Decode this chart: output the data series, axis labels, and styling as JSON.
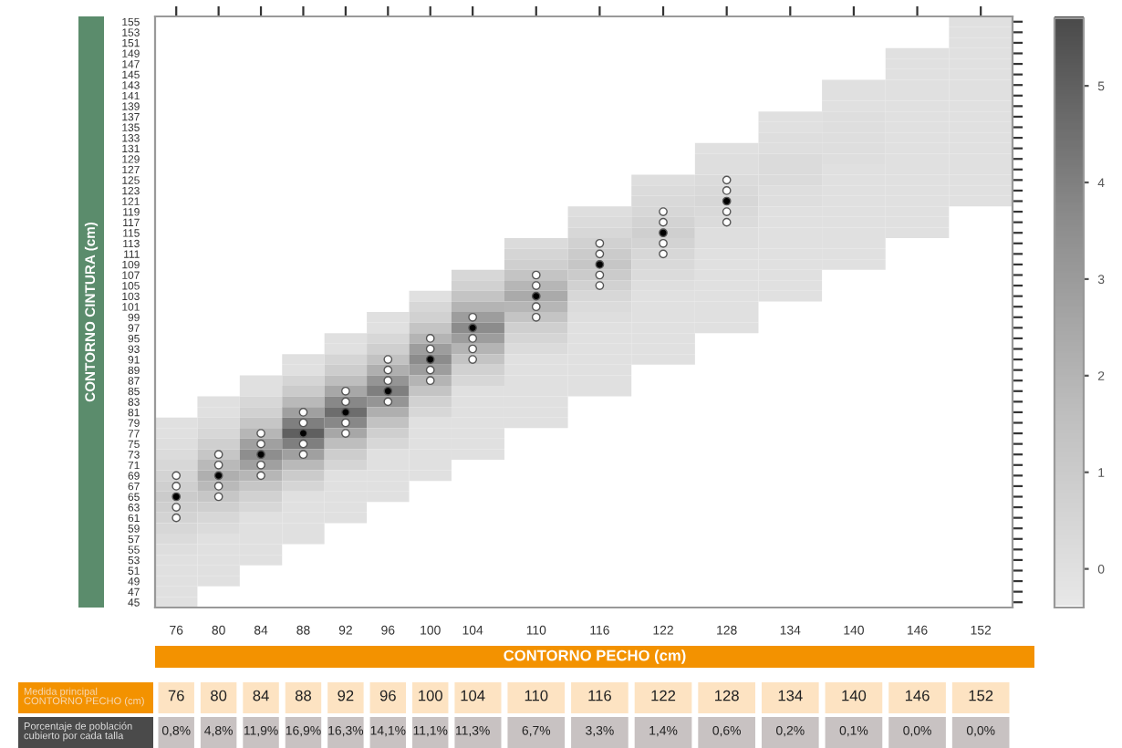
{
  "chart_data": {
    "type": "heatmap",
    "xlabel": "CONTORNO PECHO (cm)",
    "ylabel": "CONTORNO CINTURA (cm)",
    "x": [
      76,
      80,
      84,
      88,
      92,
      96,
      100,
      104,
      110,
      116,
      122,
      128,
      134,
      140,
      146,
      152
    ],
    "xlim": [
      74,
      155
    ],
    "xticks": [
      76,
      80,
      84,
      88,
      92,
      96,
      100,
      104,
      110,
      116,
      122,
      128,
      134,
      140,
      146,
      152
    ],
    "ylim": [
      44,
      156
    ],
    "yticks": [
      155,
      153,
      151,
      149,
      147,
      145,
      143,
      141,
      139,
      137,
      135,
      133,
      131,
      129,
      127,
      125,
      123,
      121,
      119,
      117,
      115,
      113,
      111,
      109,
      107,
      105,
      103,
      101,
      99,
      97,
      95,
      93,
      91,
      89,
      87,
      85,
      83,
      81,
      79,
      77,
      75,
      73,
      71,
      69,
      67,
      65,
      63,
      61,
      59,
      57,
      55,
      53,
      51,
      49,
      47,
      45
    ],
    "clim": [
      -0.4,
      5.7
    ],
    "cticks": [
      0,
      1,
      2,
      3,
      4,
      5
    ],
    "cells": [
      [
        null,
        null,
        null,
        null,
        null,
        null,
        null,
        null,
        null,
        null,
        null,
        null,
        null,
        null,
        null,
        0
      ],
      [
        null,
        null,
        null,
        null,
        null,
        null,
        null,
        null,
        null,
        null,
        null,
        null,
        null,
        null,
        null,
        0
      ],
      [
        null,
        null,
        null,
        null,
        null,
        null,
        null,
        null,
        null,
        null,
        null,
        null,
        null,
        null,
        null,
        0
      ],
      [
        null,
        null,
        null,
        null,
        null,
        null,
        null,
        null,
        null,
        null,
        null,
        null,
        null,
        null,
        0,
        0
      ],
      [
        null,
        null,
        null,
        null,
        null,
        null,
        null,
        null,
        null,
        null,
        null,
        null,
        null,
        null,
        0,
        0
      ],
      [
        null,
        null,
        null,
        null,
        null,
        null,
        null,
        null,
        null,
        null,
        null,
        null,
        null,
        null,
        0,
        0
      ],
      [
        null,
        null,
        null,
        null,
        null,
        null,
        null,
        null,
        null,
        null,
        null,
        null,
        null,
        0,
        0,
        0
      ],
      [
        null,
        null,
        null,
        null,
        null,
        null,
        null,
        null,
        null,
        null,
        null,
        null,
        null,
        0,
        0,
        0
      ],
      [
        null,
        null,
        null,
        null,
        null,
        null,
        null,
        null,
        null,
        null,
        null,
        null,
        null,
        0,
        0,
        0
      ],
      [
        null,
        null,
        null,
        null,
        null,
        null,
        null,
        null,
        null,
        null,
        null,
        null,
        0,
        0.1,
        0,
        0
      ],
      [
        null,
        null,
        null,
        null,
        null,
        null,
        null,
        null,
        null,
        null,
        null,
        null,
        0,
        0.1,
        0,
        0
      ],
      [
        null,
        null,
        null,
        null,
        null,
        null,
        null,
        null,
        null,
        null,
        null,
        null,
        0.1,
        0.1,
        0,
        0
      ],
      [
        null,
        null,
        null,
        null,
        null,
        null,
        null,
        null,
        null,
        null,
        null,
        0,
        0.1,
        0.1,
        0,
        0
      ],
      [
        null,
        null,
        null,
        null,
        null,
        null,
        null,
        null,
        null,
        null,
        null,
        0.1,
        0.2,
        0.1,
        0,
        0
      ],
      [
        null,
        null,
        null,
        null,
        null,
        null,
        null,
        null,
        null,
        null,
        null,
        0.1,
        0.2,
        0,
        0,
        0
      ],
      [
        null,
        null,
        null,
        null,
        null,
        null,
        null,
        null,
        null,
        null,
        0.1,
        0.2,
        0.2,
        0,
        0,
        0
      ],
      [
        null,
        null,
        null,
        null,
        null,
        null,
        null,
        null,
        null,
        null,
        0.2,
        0.3,
        0.1,
        0,
        0,
        0
      ],
      [
        null,
        null,
        null,
        null,
        null,
        null,
        null,
        null,
        null,
        null,
        0.3,
        0.4,
        0.1,
        0,
        0,
        0
      ],
      [
        null,
        null,
        null,
        null,
        null,
        null,
        null,
        null,
        null,
        0.1,
        0.4,
        0.3,
        0,
        0,
        0,
        null
      ],
      [
        null,
        null,
        null,
        null,
        null,
        null,
        null,
        null,
        null,
        0.2,
        0.6,
        0.2,
        0,
        0,
        0,
        null
      ],
      [
        null,
        null,
        null,
        null,
        null,
        null,
        null,
        null,
        null,
        0.4,
        0.8,
        0.1,
        0,
        0,
        0,
        null
      ],
      [
        null,
        null,
        null,
        null,
        null,
        null,
        null,
        null,
        0.2,
        0.7,
        0.6,
        0.1,
        0,
        0,
        null,
        null
      ],
      [
        null,
        null,
        null,
        null,
        null,
        null,
        null,
        null,
        0.5,
        1.0,
        0.4,
        0,
        0,
        0,
        null,
        null
      ],
      [
        null,
        null,
        null,
        null,
        null,
        null,
        null,
        null,
        0.8,
        1.2,
        0.3,
        0,
        0,
        0,
        null,
        null
      ],
      [
        null,
        null,
        null,
        null,
        null,
        null,
        null,
        0.4,
        1.3,
        1.0,
        0.2,
        0,
        0,
        null,
        null,
        null
      ],
      [
        null,
        null,
        null,
        null,
        null,
        null,
        null,
        0.7,
        1.9,
        0.7,
        0.1,
        0,
        0,
        null,
        null,
        null
      ],
      [
        null,
        null,
        null,
        null,
        null,
        null,
        0,
        1.3,
        2.4,
        0.4,
        0,
        0,
        0,
        null,
        null,
        null
      ],
      [
        null,
        null,
        null,
        null,
        null,
        null,
        0.4,
        2.0,
        1.9,
        0.2,
        0,
        0,
        null,
        null,
        null,
        null
      ],
      [
        null,
        null,
        null,
        null,
        null,
        0,
        0.7,
        2.9,
        1.3,
        0.1,
        0,
        0,
        null,
        null,
        null,
        null
      ],
      [
        null,
        null,
        null,
        null,
        null,
        0,
        1.3,
        3.6,
        0.8,
        0,
        0,
        0,
        null,
        null,
        null,
        null
      ],
      [
        null,
        null,
        null,
        null,
        0,
        0.4,
        2.0,
        2.9,
        0.5,
        0,
        0,
        null,
        null,
        null,
        null,
        null
      ],
      [
        null,
        null,
        null,
        null,
        0,
        0.8,
        2.9,
        2.0,
        0.2,
        0,
        0,
        null,
        null,
        null,
        null,
        null
      ],
      [
        null,
        null,
        null,
        0,
        0.5,
        1.4,
        3.6,
        1.3,
        0,
        0,
        0,
        null,
        null,
        null,
        null,
        null
      ],
      [
        null,
        null,
        null,
        0,
        0.9,
        2.2,
        2.9,
        0.7,
        0,
        0,
        null,
        null,
        null,
        null,
        null,
        null
      ],
      [
        null,
        null,
        0,
        0.5,
        1.6,
        3.2,
        2.0,
        0.4,
        0,
        0,
        null,
        null,
        null,
        null,
        null,
        null
      ],
      [
        null,
        null,
        0,
        1.0,
        2.5,
        4.0,
        1.3,
        0,
        0,
        0,
        null,
        null,
        null,
        null,
        null,
        null
      ],
      [
        null,
        0,
        0.4,
        1.8,
        3.7,
        3.2,
        0.7,
        0,
        0,
        null,
        null,
        null,
        null,
        null,
        null,
        null
      ],
      [
        null,
        0,
        0.7,
        2.8,
        4.6,
        2.2,
        0.4,
        0,
        0,
        null,
        null,
        null,
        null,
        null,
        null,
        null
      ],
      [
        0,
        0.2,
        1.2,
        4.0,
        3.7,
        1.4,
        0,
        0,
        0,
        null,
        null,
        null,
        null,
        null,
        null,
        null
      ],
      [
        0,
        0.4,
        1.9,
        5.0,
        2.5,
        0.8,
        0,
        0,
        null,
        null,
        null,
        null,
        null,
        null,
        null,
        null
      ],
      [
        0.1,
        0.8,
        2.8,
        4.0,
        1.6,
        0.4,
        0,
        0,
        null,
        null,
        null,
        null,
        null,
        null,
        null,
        null
      ],
      [
        0.2,
        1.2,
        3.5,
        2.8,
        0.9,
        0,
        0,
        0,
        null,
        null,
        null,
        null,
        null,
        null,
        null,
        null
      ],
      [
        0.4,
        1.8,
        2.8,
        1.8,
        0.5,
        0,
        0,
        null,
        null,
        null,
        null,
        null,
        null,
        null,
        null,
        null
      ],
      [
        0.6,
        2.2,
        1.9,
        1.0,
        0,
        0,
        0,
        null,
        null,
        null,
        null,
        null,
        null,
        null,
        null,
        null
      ],
      [
        0.8,
        1.8,
        1.2,
        0.5,
        0,
        0,
        null,
        null,
        null,
        null,
        null,
        null,
        null,
        null,
        null,
        null
      ],
      [
        1.0,
        1.2,
        0.7,
        0,
        0,
        0,
        null,
        null,
        null,
        null,
        null,
        null,
        null,
        null,
        null,
        null
      ],
      [
        0.8,
        0.8,
        0.4,
        0,
        0,
        null,
        null,
        null,
        null,
        null,
        null,
        null,
        null,
        null,
        null,
        null
      ],
      [
        0.6,
        0.4,
        0,
        0,
        0,
        null,
        null,
        null,
        null,
        null,
        null,
        null,
        null,
        null,
        null,
        null
      ],
      [
        0.4,
        0.2,
        0,
        0,
        null,
        null,
        null,
        null,
        null,
        null,
        null,
        null,
        null,
        null,
        null,
        null
      ],
      [
        0.2,
        0,
        0,
        0,
        null,
        null,
        null,
        null,
        null,
        null,
        null,
        null,
        null,
        null,
        null,
        null
      ],
      [
        0.1,
        0,
        0,
        null,
        null,
        null,
        null,
        null,
        null,
        null,
        null,
        null,
        null,
        null,
        null,
        null
      ],
      [
        0,
        0,
        0,
        null,
        null,
        null,
        null,
        null,
        null,
        null,
        null,
        null,
        null,
        null,
        null,
        null
      ],
      [
        0,
        0,
        null,
        null,
        null,
        null,
        null,
        null,
        null,
        null,
        null,
        null,
        null,
        null,
        null,
        null
      ],
      [
        0,
        0,
        null,
        null,
        null,
        null,
        null,
        null,
        null,
        null,
        null,
        null,
        null,
        null,
        null,
        null
      ],
      [
        0,
        null,
        null,
        null,
        null,
        null,
        null,
        null,
        null,
        null,
        null,
        null,
        null,
        null,
        null,
        null
      ],
      [
        0,
        null,
        null,
        null,
        null,
        null,
        null,
        null,
        null,
        null,
        null,
        null,
        null,
        null,
        null,
        null
      ]
    ],
    "marker": "circle",
    "series": [
      {
        "type": "scatter",
        "color": "#ffffff",
        "x": [
          76,
          76,
          76,
          76,
          80,
          80,
          80,
          80,
          84,
          84,
          84,
          84,
          88,
          88,
          88,
          88,
          92,
          92,
          92,
          92,
          96,
          96,
          96,
          96,
          100,
          100,
          100,
          100,
          104,
          104,
          104,
          104,
          110,
          110,
          110,
          110,
          116,
          116,
          116,
          116,
          122,
          122,
          122,
          122,
          128,
          128,
          128,
          128
        ],
        "values": [
          69,
          67,
          63,
          61,
          73,
          71,
          67,
          65,
          77,
          75,
          71,
          69,
          81,
          79,
          75,
          73,
          85,
          83,
          79,
          77,
          91,
          89,
          87,
          83,
          95,
          93,
          89,
          87,
          99,
          95,
          93,
          91,
          107,
          105,
          101,
          99,
          113,
          111,
          107,
          105,
          119,
          117,
          113,
          111,
          125,
          123,
          119,
          117
        ]
      },
      {
        "type": "scatter",
        "color": "#000000",
        "x": [
          76,
          80,
          84,
          88,
          92,
          96,
          100,
          104,
          110,
          116,
          122,
          128
        ],
        "values": [
          65,
          69,
          73,
          77,
          81,
          85,
          91,
          97,
          103,
          109,
          115,
          121
        ]
      }
    ],
    "annotations": [
      "Medida principal\nCONTORNO PECHO (cm)",
      "Porcentaje de población\ncubierto por cada talla",
      "76",
      "80",
      "84",
      "88",
      "92",
      "96",
      "100",
      "104",
      "110",
      "116",
      "122",
      "128",
      "134",
      "140",
      "146",
      "152",
      "0,8%",
      "4,8%",
      "11,9%",
      "16,9%",
      "16,3%",
      "14,1%",
      "11,1%",
      "11,3%",
      "6,7%",
      "3,3%",
      "1,4%",
      "0,6%",
      "0,2%",
      "0,1%",
      "0,0%",
      "0,0%"
    ]
  }
}
